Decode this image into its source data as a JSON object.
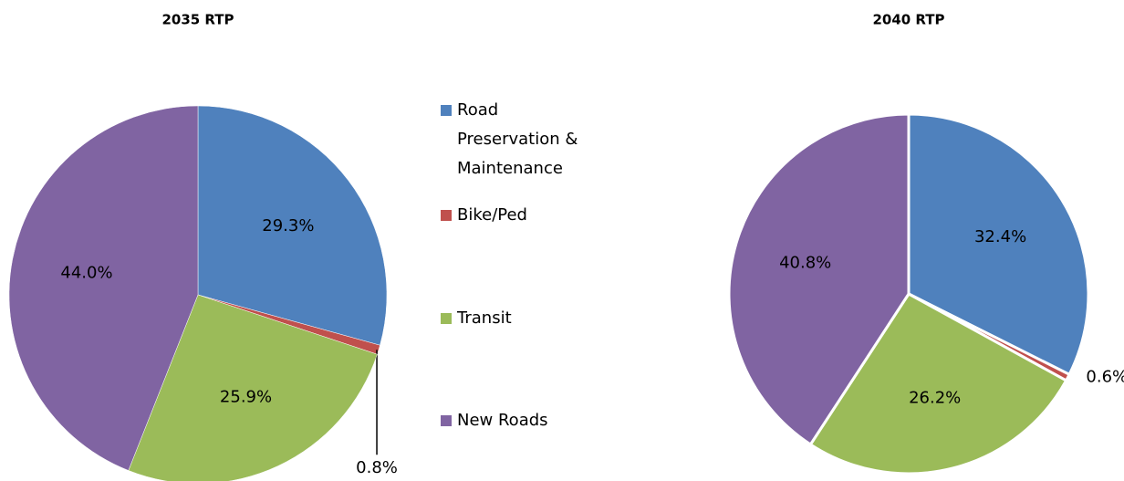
{
  "chart_data": [
    {
      "type": "pie",
      "title": "2035 RTP",
      "categories": [
        "Road Preservation & Maintenance",
        "Bike/Ped",
        "Transit",
        "New Roads"
      ],
      "values": [
        29.3,
        0.8,
        25.9,
        44.0
      ],
      "value_labels": [
        "29.3%",
        "0.8%",
        "25.9%",
        "44.0%"
      ],
      "colors": [
        "#4f81bd",
        "#c0504d",
        "#9bbb59",
        "#8064a2"
      ],
      "legend": "center"
    },
    {
      "type": "pie",
      "title": "2040 RTP",
      "categories": [
        "Road Preservation & Maintenance",
        "Bike/Ped",
        "Transit",
        "New Roads"
      ],
      "values": [
        32.4,
        0.6,
        26.2,
        40.8
      ],
      "value_labels": [
        "32.4%",
        "0.6%",
        "26.2%",
        "40.8%"
      ],
      "colors": [
        "#4f81bd",
        "#c0504d",
        "#9bbb59",
        "#8064a2"
      ]
    }
  ]
}
